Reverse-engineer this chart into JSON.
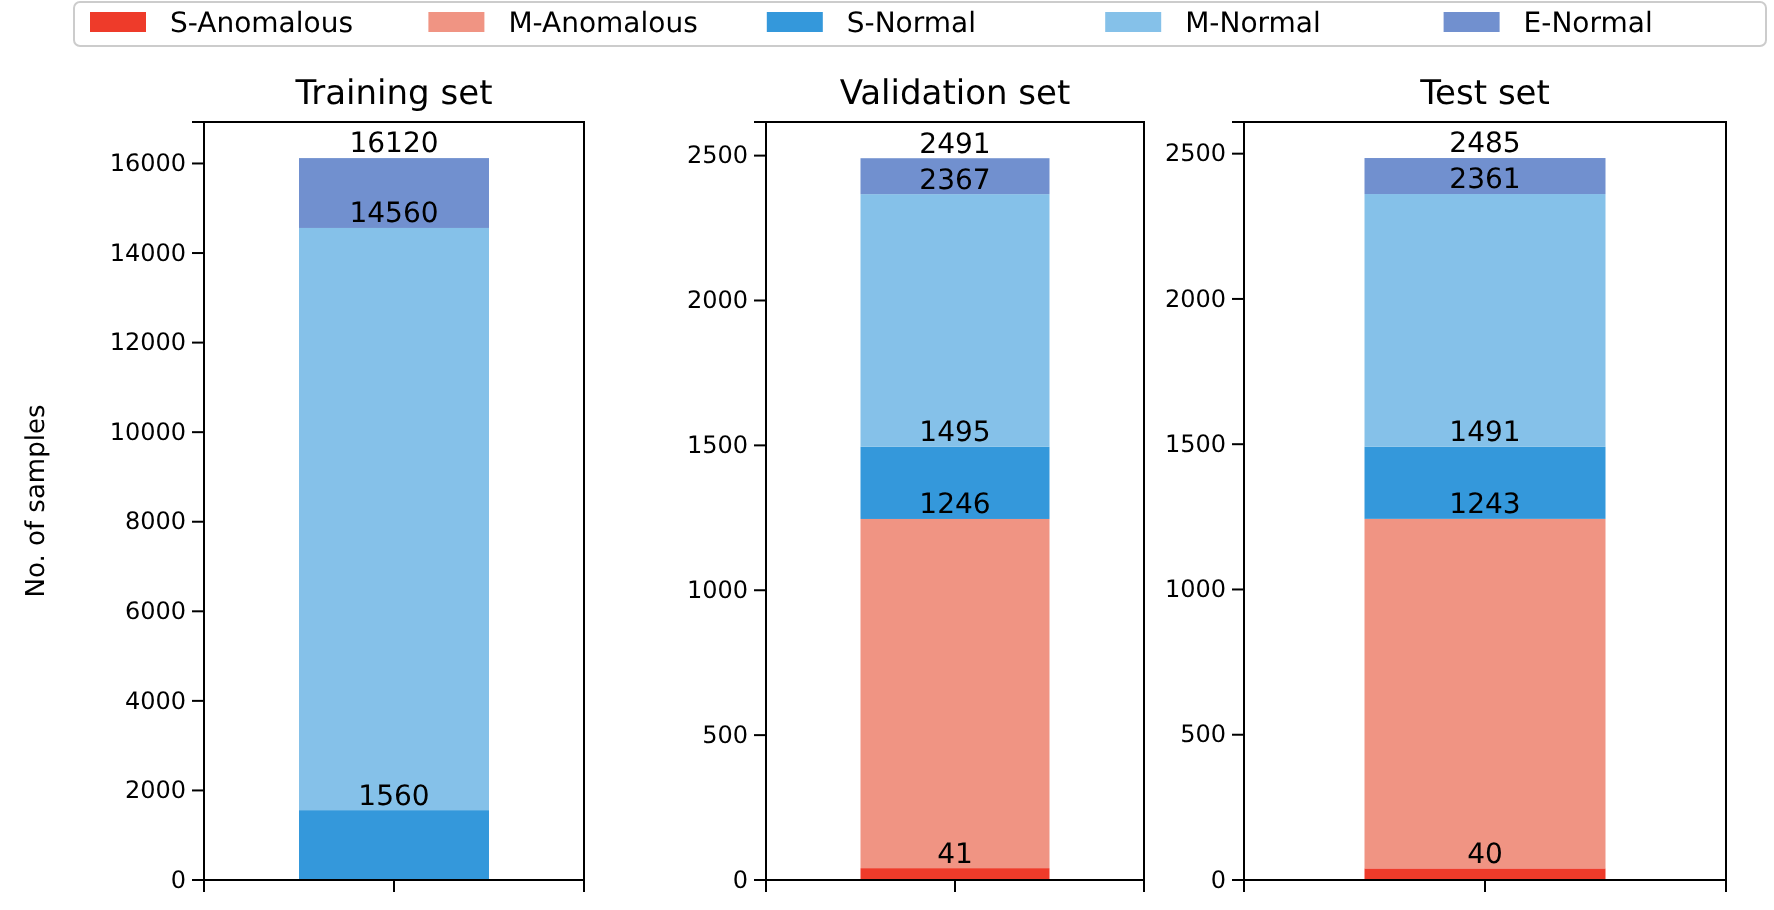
{
  "chart_data": [
    {
      "type": "bar",
      "title": "Training set",
      "ylabel": "No. of samples",
      "categories": [
        null
      ],
      "stacked": true,
      "legend": "top",
      "ylim": [
        0,
        16926
      ],
      "yticks": [
        0,
        2000,
        4000,
        6000,
        8000,
        10000,
        12000,
        14000,
        16000
      ],
      "series": [
        {
          "name": "S-Anomalous",
          "color": "#ee3b2a",
          "values": [
            null
          ]
        },
        {
          "name": "M-Anomalous",
          "color": "#f09483",
          "values": [
            null
          ]
        },
        {
          "name": "S-Normal",
          "color": "#3498db",
          "values": [
            1560
          ]
        },
        {
          "name": "M-Normal",
          "color": "#85c1e9",
          "values": [
            13000
          ]
        },
        {
          "name": "E-Normal",
          "color": "#7190cf",
          "values": [
            1560
          ]
        }
      ],
      "annotations": [
        {
          "text": "1560",
          "y": 1560
        },
        {
          "text": "14560",
          "y": 14560
        },
        {
          "text": "16120",
          "y": 16120
        }
      ]
    },
    {
      "type": "bar",
      "title": "Validation set",
      "categories": [
        null
      ],
      "stacked": true,
      "ylim": [
        0,
        2616
      ],
      "yticks": [
        0,
        500,
        1000,
        1500,
        2000,
        2500
      ],
      "series": [
        {
          "color": "#ee3b2a",
          "values": [
            41
          ]
        },
        {
          "color": "#f09483",
          "values": [
            1205
          ]
        },
        {
          "color": "#3498db",
          "values": [
            249
          ]
        },
        {
          "color": "#85c1e9",
          "values": [
            872
          ]
        },
        {
          "color": "#7190cf",
          "values": [
            124
          ]
        }
      ],
      "annotations": [
        {
          "text": "41",
          "y": 41
        },
        {
          "text": "1246",
          "y": 1246
        },
        {
          "text": "1495",
          "y": 1495
        },
        {
          "text": "2367",
          "y": 2367
        },
        {
          "text": "2491",
          "y": 2491
        }
      ]
    },
    {
      "type": "bar",
      "title": "Test set",
      "categories": [
        null
      ],
      "stacked": true,
      "ylim": [
        0,
        2609
      ],
      "yticks": [
        0,
        500,
        1000,
        1500,
        2000,
        2500
      ],
      "series": [
        {
          "color": "#ee3b2a",
          "values": [
            40
          ]
        },
        {
          "color": "#f09483",
          "values": [
            1203
          ]
        },
        {
          "color": "#3498db",
          "values": [
            248
          ]
        },
        {
          "color": "#85c1e9",
          "values": [
            870
          ]
        },
        {
          "color": "#7190cf",
          "values": [
            124
          ]
        }
      ],
      "annotations": [
        {
          "text": "40",
          "y": 40
        },
        {
          "text": "1243",
          "y": 1243
        },
        {
          "text": "1491",
          "y": 1491
        },
        {
          "text": "2361",
          "y": 2361
        },
        {
          "text": "2485",
          "y": 2485
        }
      ]
    }
  ]
}
